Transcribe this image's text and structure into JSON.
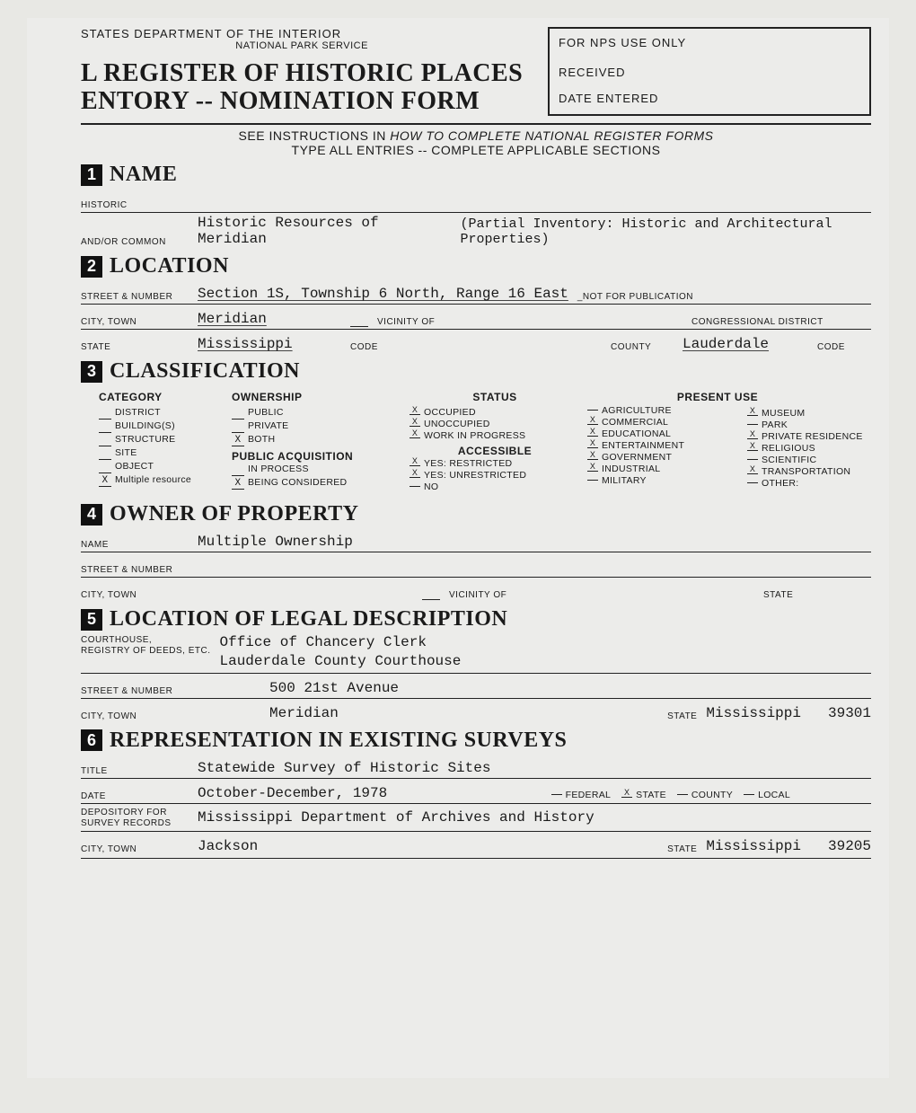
{
  "header": {
    "dept_line1": "STATES DEPARTMENT OF THE INTERIOR",
    "dept_line2": "NATIONAL PARK SERVICE",
    "title_line1": "L REGISTER OF HISTORIC PLACES",
    "title_line2": "ENTORY -- NOMINATION FORM",
    "nps_box": {
      "header": "FOR NPS USE ONLY",
      "received": "RECEIVED",
      "date_entered": "DATE ENTERED"
    },
    "instructions_line1": "SEE INSTRUCTIONS IN ",
    "instructions_ital": "HOW TO COMPLETE NATIONAL REGISTER FORMS",
    "instructions_line2": "TYPE ALL ENTRIES -- COMPLETE APPLICABLE SECTIONS"
  },
  "s1": {
    "num": "1",
    "title": "NAME",
    "historic_label": "HISTORIC",
    "common_label": "AND/OR COMMON",
    "common_value": "Historic Resources of Meridian",
    "common_note": "(Partial Inventory:  Historic and Architectural Properties)"
  },
  "s2": {
    "num": "2",
    "title": "LOCATION",
    "street_label": "STREET & NUMBER",
    "street_value": "Section 1S, Township 6 North, Range 16 East",
    "not_for_pub": "_NOT FOR PUBLICATION",
    "city_label": "CITY, TOWN",
    "city_value": "Meridian",
    "vicinity": "VICINITY OF",
    "cong_district": "CONGRESSIONAL DISTRICT",
    "state_label": "STATE",
    "state_value": "Mississippi",
    "code_label": "CODE",
    "county_label": "COUNTY",
    "county_value": "Lauderdale",
    "code2_label": "CODE"
  },
  "s3": {
    "num": "3",
    "title": "CLASSIFICATION",
    "cols": {
      "category": {
        "head": "CATEGORY",
        "items": [
          {
            "mark": "",
            "label": "DISTRICT"
          },
          {
            "mark": "",
            "label": "BUILDING(S)"
          },
          {
            "mark": "",
            "label": "STRUCTURE"
          },
          {
            "mark": "",
            "label": "SITE"
          },
          {
            "mark": "",
            "label": "OBJECT"
          },
          {
            "mark": "X",
            "label": "Multiple resource"
          }
        ]
      },
      "ownership": {
        "head": "OWNERSHIP",
        "items": [
          {
            "mark": "",
            "label": "PUBLIC"
          },
          {
            "mark": "",
            "label": "PRIVATE"
          },
          {
            "mark": "X",
            "label": "BOTH"
          }
        ],
        "sub_head": "PUBLIC ACQUISITION",
        "sub_items": [
          {
            "mark": "",
            "label": "IN PROCESS"
          },
          {
            "mark": "X",
            "label": "BEING CONSIDERED"
          }
        ]
      },
      "status": {
        "head": "STATUS",
        "items": [
          {
            "mark": "X",
            "label": "OCCUPIED"
          },
          {
            "mark": "X",
            "label": "UNOCCUPIED"
          },
          {
            "mark": "X",
            "label": "WORK IN PROGRESS"
          }
        ],
        "sub_head": "ACCESSIBLE",
        "sub_items": [
          {
            "mark": "X",
            "label": "YES: RESTRICTED"
          },
          {
            "mark": "X",
            "label": "YES: UNRESTRICTED"
          },
          {
            "mark": "",
            "label": "NO"
          }
        ]
      },
      "present_use": {
        "head": "PRESENT USE",
        "left": [
          {
            "mark": "",
            "label": "AGRICULTURE"
          },
          {
            "mark": "X",
            "label": "COMMERCIAL"
          },
          {
            "mark": "X",
            "label": "EDUCATIONAL"
          },
          {
            "mark": "X",
            "label": "ENTERTAINMENT"
          },
          {
            "mark": "X",
            "label": "GOVERNMENT"
          },
          {
            "mark": "X",
            "label": "INDUSTRIAL"
          },
          {
            "mark": "",
            "label": "MILITARY"
          }
        ],
        "right": [
          {
            "mark": "X",
            "label": "MUSEUM"
          },
          {
            "mark": "",
            "label": "PARK"
          },
          {
            "mark": "X",
            "label": "PRIVATE RESIDENCE"
          },
          {
            "mark": "X",
            "label": "RELIGIOUS"
          },
          {
            "mark": "",
            "label": "SCIENTIFIC"
          },
          {
            "mark": "X",
            "label": "TRANSPORTATION"
          },
          {
            "mark": "",
            "label": "OTHER:"
          }
        ]
      }
    }
  },
  "s4": {
    "num": "4",
    "title": "OWNER OF PROPERTY",
    "name_label": "NAME",
    "name_value": "Multiple Ownership",
    "street_label": "STREET & NUMBER",
    "city_label": "CITY, TOWN",
    "vicinity": "VICINITY OF",
    "state_label": "STATE"
  },
  "s5": {
    "num": "5",
    "title": "LOCATION OF LEGAL DESCRIPTION",
    "court_label1": "COURTHOUSE,",
    "court_label2": "REGISTRY OF DEEDS, ETC.",
    "court_value1": "Office of Chancery Clerk",
    "court_value2": "Lauderdale County Courthouse",
    "street_label": "STREET & NUMBER",
    "street_value": "500 21st Avenue",
    "city_label": "CITY, TOWN",
    "city_value": "Meridian",
    "state_label": "STATE",
    "state_value": "Mississippi",
    "zip": "39301"
  },
  "s6": {
    "num": "6",
    "title": "REPRESENTATION IN EXISTING SURVEYS",
    "title_label": "TITLE",
    "title_value": "Statewide Survey of Historic Sites",
    "date_label": "DATE",
    "date_value": "October-December, 1978",
    "levels": [
      {
        "mark": "",
        "label": "FEDERAL"
      },
      {
        "mark": "X",
        "label": "STATE"
      },
      {
        "mark": "",
        "label": "COUNTY"
      },
      {
        "mark": "",
        "label": "LOCAL"
      }
    ],
    "depository_label1": "DEPOSITORY FOR",
    "depository_label2": "SURVEY RECORDS",
    "depository_value": "Mississippi Department of Archives and History",
    "city_label": "CITY, TOWN",
    "city_value": "Jackson",
    "state_label": "STATE",
    "state_value": "Mississippi",
    "zip": "39205"
  }
}
